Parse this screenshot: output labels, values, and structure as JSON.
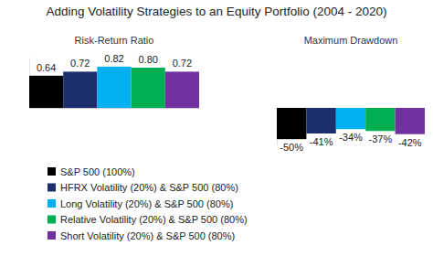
{
  "chart_data": [
    {
      "type": "bar",
      "title": "Adding Volatility Strategies to an Equity Portfolio (2004 - 2020)",
      "subtitle": "Risk-Return Ratio",
      "categories": [
        "S&P 500 (100%)",
        "HFRX Volatility (20%) & S&P 500 (80%)",
        "Long Volatility (20%) & S&P 500 (80%)",
        "Relative Volatility (20%) & S&P 500 (80%)",
        "Short Volatility (20%) & S&P 500 (80%)"
      ],
      "colors": [
        "#000000",
        "#1c2e6b",
        "#00b0f0",
        "#00b050",
        "#7030a0"
      ],
      "values": [
        0.64,
        0.72,
        0.82,
        0.8,
        0.72
      ],
      "value_labels": [
        "0.64",
        "0.72",
        "0.82",
        "0.80",
        "0.72"
      ],
      "ylim": [
        0,
        1
      ],
      "yticks": [
        0
      ],
      "data_labels": true,
      "tick_labels": false,
      "legend": "bottom left"
    },
    {
      "type": "bar",
      "subtitle": "Maximum Drawdown",
      "categories": [
        null,
        null,
        null,
        null,
        null
      ],
      "colors": [
        "#000000",
        "#1c2e6b",
        "#00b0f0",
        "#00b050",
        "#7030a0"
      ],
      "values": [
        -50,
        -41,
        -34,
        -37,
        -42
      ],
      "value_labels": [
        "-50%",
        "-41%",
        "-34%",
        "-37%",
        "-42%"
      ],
      "ylim": [
        -60,
        0
      ],
      "yticks": [
        0
      ],
      "data_labels": true,
      "tick_labels": false
    }
  ]
}
